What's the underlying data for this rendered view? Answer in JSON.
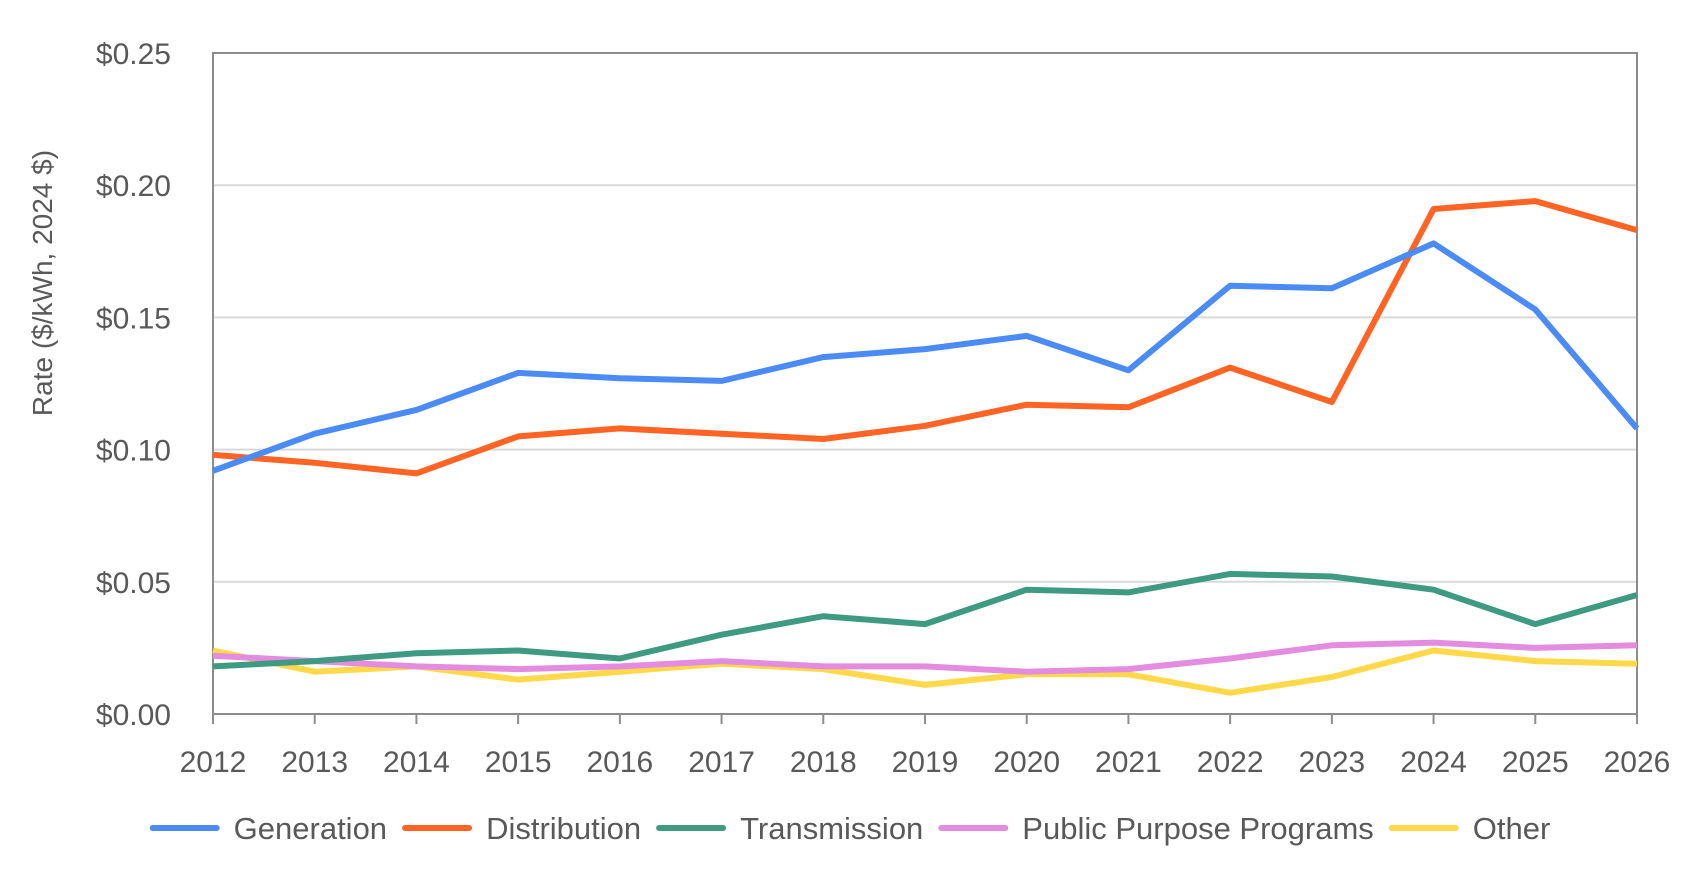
{
  "chart_data": {
    "type": "line",
    "title": "",
    "xlabel": "",
    "ylabel": "Rate ($/kWh, 2024 $)",
    "ylim": [
      0,
      0.25
    ],
    "yticks": [
      "$0.00",
      "$0.05",
      "$0.10",
      "$0.15",
      "$0.20",
      "$0.25"
    ],
    "ytick_values": [
      0,
      0.05,
      0.1,
      0.15,
      0.2,
      0.25
    ],
    "grid": true,
    "legend_position": "bottom",
    "categories": [
      "2012",
      "2013",
      "2014",
      "2015",
      "2016",
      "2017",
      "2018",
      "2019",
      "2020",
      "2021",
      "2022",
      "2023",
      "2024",
      "2025",
      "2026"
    ],
    "series": [
      {
        "name": "Generation",
        "color": "#4B8BF5",
        "values": [
          0.092,
          0.106,
          0.115,
          0.129,
          0.127,
          0.126,
          0.135,
          0.138,
          0.143,
          0.13,
          0.162,
          0.161,
          0.178,
          0.153,
          0.108
        ]
      },
      {
        "name": "Distribution",
        "color": "#FF6424",
        "values": [
          0.098,
          0.095,
          0.091,
          0.105,
          0.108,
          0.106,
          0.104,
          0.109,
          0.117,
          0.116,
          0.131,
          0.118,
          0.191,
          0.194,
          0.183
        ]
      },
      {
        "name": "Transmission",
        "color": "#3F9A82",
        "values": [
          0.018,
          0.02,
          0.023,
          0.024,
          0.021,
          0.03,
          0.037,
          0.034,
          0.047,
          0.046,
          0.053,
          0.052,
          0.047,
          0.034,
          0.045
        ]
      },
      {
        "name": "Public Purpose Programs",
        "color": "#E48CE0",
        "values": [
          0.022,
          0.02,
          0.018,
          0.017,
          0.018,
          0.02,
          0.018,
          0.018,
          0.016,
          0.017,
          0.021,
          0.026,
          0.027,
          0.025,
          0.026
        ]
      },
      {
        "name": "Other",
        "color": "#FFD94A",
        "values": [
          0.024,
          0.016,
          0.018,
          0.013,
          0.016,
          0.019,
          0.017,
          0.011,
          0.015,
          0.015,
          0.008,
          0.014,
          0.024,
          0.02,
          0.019
        ]
      }
    ]
  },
  "colors": {
    "axis": "#8C8C8C",
    "gridline": "#D9D9D9",
    "text": "#595959"
  }
}
